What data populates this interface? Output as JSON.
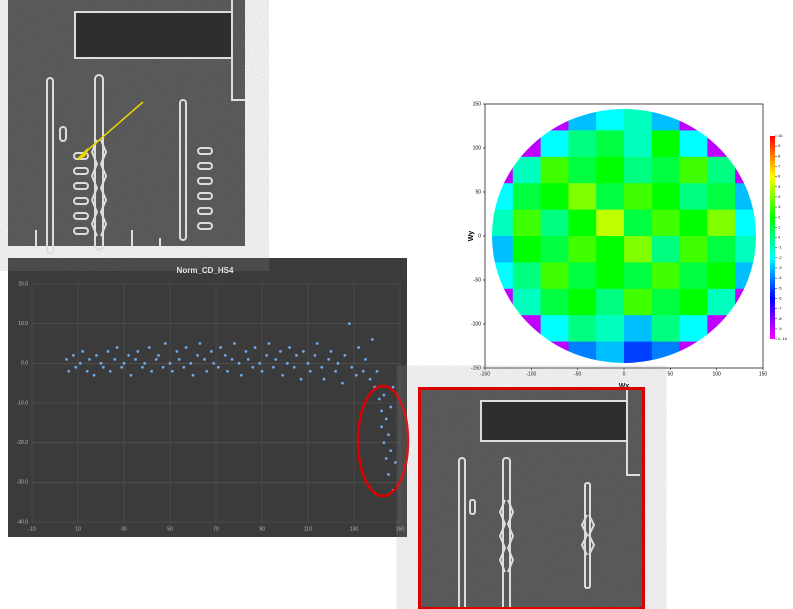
{
  "chart_data": [
    {
      "type": "scatter",
      "title": "Norm_CD_HS4",
      "color": "#6fa8e8",
      "grid": true,
      "xlim": [
        -10,
        150
      ],
      "xticks": [
        -10,
        10,
        30,
        50,
        70,
        90,
        110,
        130,
        150
      ],
      "ylim": [
        -40,
        20
      ],
      "yticks": [
        {
          "value": 20,
          "label": "20.0"
        },
        {
          "value": 10,
          "label": "10.0"
        },
        {
          "value": 0,
          "label": "0.0"
        },
        {
          "value": -10,
          "label": "-10.0"
        },
        {
          "value": -20,
          "label": "-20.0"
        },
        {
          "value": -30,
          "label": "-30.0"
        },
        {
          "value": -40,
          "label": "-40.0"
        }
      ],
      "x": [
        5,
        6,
        8,
        9,
        11,
        12,
        14,
        15,
        17,
        18,
        20,
        21,
        23,
        24,
        26,
        27,
        29,
        30,
        32,
        33,
        35,
        36,
        38,
        39,
        41,
        42,
        44,
        45,
        47,
        48,
        50,
        51,
        53,
        54,
        56,
        57,
        59,
        60,
        62,
        63,
        65,
        66,
        68,
        69,
        71,
        72,
        74,
        75,
        77,
        78,
        80,
        81,
        83,
        84,
        86,
        87,
        89,
        90,
        92,
        93,
        95,
        96,
        98,
        99,
        101,
        102,
        104,
        105,
        107,
        108,
        110,
        111,
        113,
        114,
        116,
        117,
        119,
        120,
        122,
        123,
        125,
        126,
        128,
        129,
        131,
        132,
        134,
        135,
        137,
        138,
        139,
        140,
        141,
        142,
        142,
        143,
        143,
        144,
        144,
        145,
        145,
        146,
        146,
        147,
        147,
        148
      ],
      "values": [
        1,
        -2,
        2,
        -1,
        0,
        3,
        -2,
        1,
        -3,
        2,
        0,
        -1,
        3,
        -2,
        1,
        4,
        -1,
        0,
        2,
        -3,
        1,
        3,
        -1,
        0,
        4,
        -2,
        1,
        2,
        -1,
        5,
        0,
        -2,
        3,
        1,
        -1,
        4,
        0,
        -3,
        2,
        5,
        1,
        -2,
        3,
        0,
        -1,
        4,
        2,
        -2,
        1,
        5,
        0,
        -3,
        3,
        1,
        -1,
        4,
        0,
        -2,
        2,
        5,
        -1,
        1,
        3,
        -3,
        0,
        4,
        -1,
        2,
        -4,
        3,
        0,
        -2,
        2,
        5,
        -1,
        -4,
        1,
        3,
        -2,
        0,
        -5,
        2,
        10,
        -1,
        -3,
        4,
        -2,
        1,
        -4,
        6,
        -6,
        -2,
        -9,
        -12,
        -16,
        -20,
        -8,
        -14,
        -24,
        -18,
        -28,
        -11,
        -22,
        -32,
        -6,
        -25
      ]
    },
    {
      "type": "heatmap",
      "ylabel": "Wy",
      "xlabel": "Wx",
      "xlim": [
        -150,
        150
      ],
      "ylim": [
        -150,
        150
      ],
      "xticks": [
        -150,
        -100,
        -50,
        0,
        50,
        100,
        150
      ],
      "yticks": [
        -150,
        -100,
        -50,
        0,
        50,
        100,
        150
      ],
      "colorscale": [
        "#ff00ff",
        "#0000ff",
        "#00ffff",
        "#00ff00",
        "#ffff00",
        "#ff0000"
      ],
      "zlim": [
        -10,
        10
      ],
      "zticks": [
        10,
        9,
        8,
        7,
        6,
        5,
        4,
        3,
        2,
        1,
        0,
        -1,
        -2,
        -3,
        -4,
        -5,
        -6,
        -7,
        -8,
        -9,
        {
          "value": -10,
          "label": "≤ -10"
        }
      ],
      "z": [
        [
          -9,
          -9,
          -9,
          -3,
          -2,
          -1,
          -3,
          -9,
          -9,
          -9
        ],
        [
          -9,
          -9,
          -2,
          0,
          1,
          -1,
          2,
          -2,
          -9,
          -9
        ],
        [
          -9,
          -1,
          3,
          1,
          2,
          0,
          1,
          3,
          0,
          -9
        ],
        [
          -2,
          1,
          2,
          4,
          1,
          3,
          2,
          0,
          1,
          -3
        ],
        [
          -1,
          3,
          0,
          2,
          5,
          1,
          3,
          2,
          4,
          -2
        ],
        [
          -3,
          2,
          1,
          3,
          2,
          4,
          0,
          3,
          1,
          -1
        ],
        [
          -2,
          0,
          3,
          1,
          2,
          1,
          3,
          1,
          2,
          -3
        ],
        [
          -9,
          -1,
          1,
          2,
          0,
          3,
          1,
          2,
          -1,
          -9
        ],
        [
          -9,
          -9,
          -2,
          0,
          -1,
          -3,
          0,
          -2,
          -9,
          -9
        ],
        [
          -9,
          -9,
          -9,
          -4,
          -3,
          -5,
          -4,
          -9,
          -9,
          -9
        ]
      ]
    }
  ]
}
